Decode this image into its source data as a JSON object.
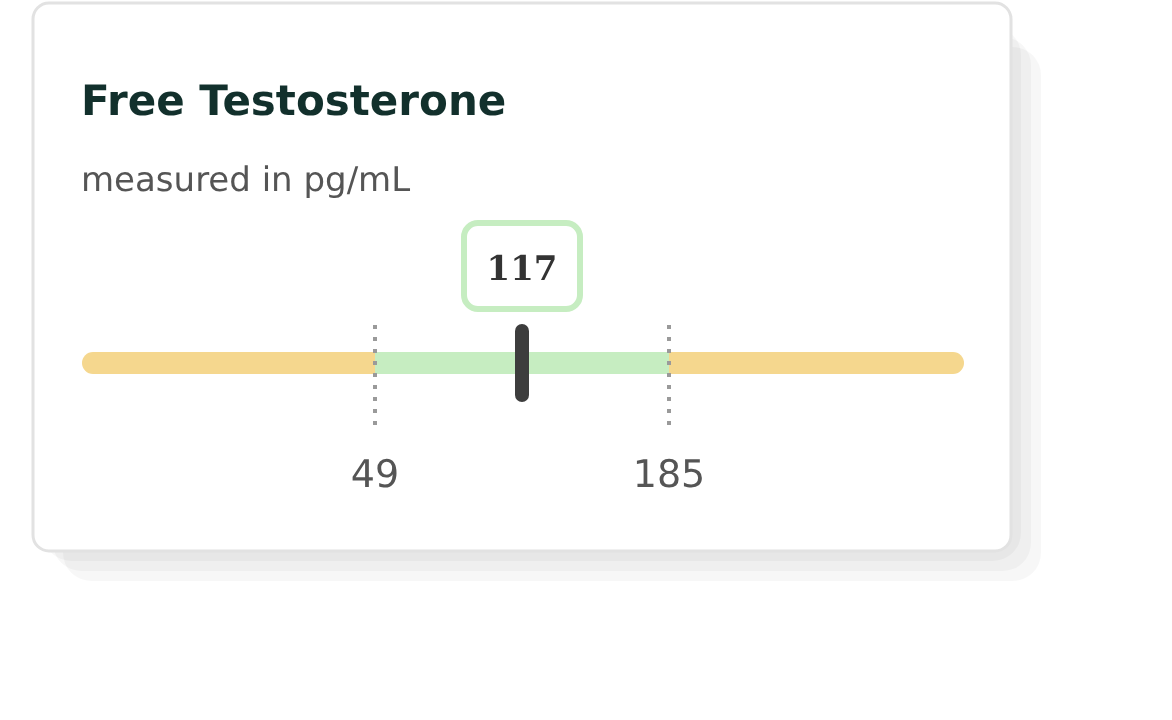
{
  "chart_data": {
    "type": "other",
    "title": "Free Testosterone",
    "subtitle": "measured in pg/mL",
    "data_labels": true,
    "values": [
      117
    ],
    "color": "#3d3d3d",
    "annotations": [
      "49",
      "185"
    ]
  }
}
